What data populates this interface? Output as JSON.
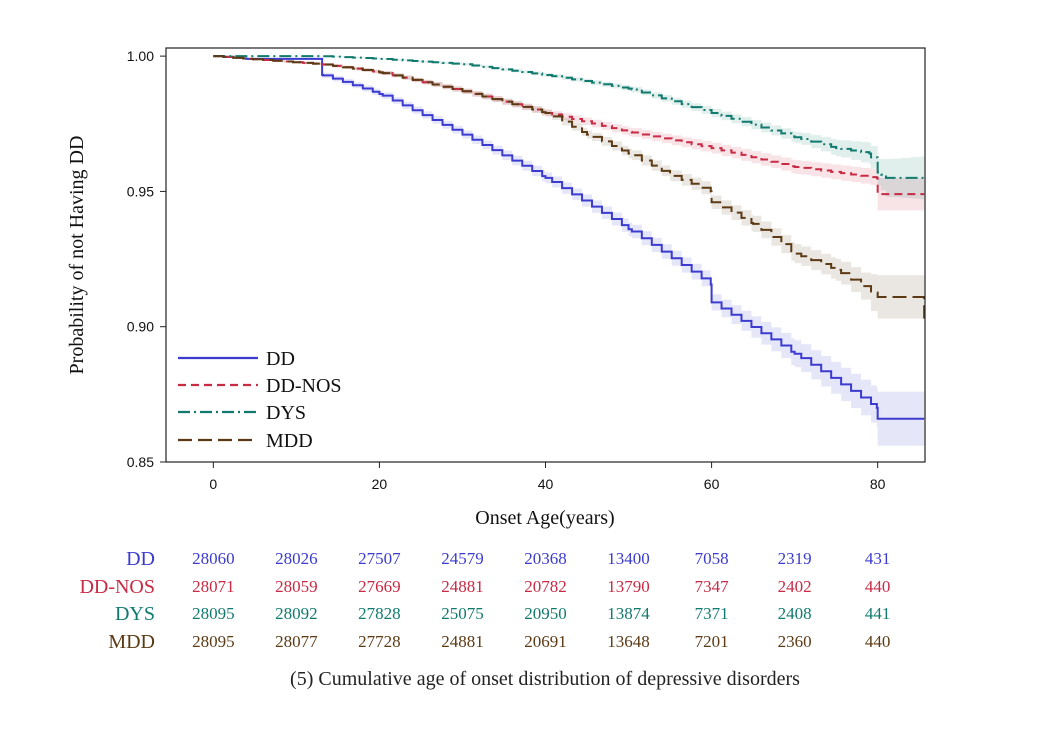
{
  "chart_data": {
    "type": "line",
    "subtype": "kaplan-meier step curves with confidence bands",
    "xlabel": "Onset Age(years)",
    "ylabel": "Probability of not Having DD",
    "xlim": [
      -5.7,
      85.7
    ],
    "ylim": [
      0.85,
      1.003
    ],
    "xticks": [
      0,
      20,
      40,
      60,
      80
    ],
    "xtick_labels": [
      "0",
      "20",
      "40",
      "60",
      "80"
    ],
    "yticks": [
      1.0,
      0.95,
      0.9,
      0.85
    ],
    "ytick_labels": [
      "1.00",
      "0.95",
      "0.90",
      "0.85"
    ],
    "legend_position": "bottom-left",
    "series": [
      {
        "name": "DD",
        "color": "#3b3bd0",
        "dash": "solid",
        "x": [
          0,
          4,
          13,
          13.1,
          20,
          30,
          40,
          50,
          59.9,
          60,
          70,
          79.9,
          80,
          85.6
        ],
        "y": [
          1.0,
          0.999,
          0.999,
          0.993,
          0.986,
          0.971,
          0.955,
          0.936,
          0.9156,
          0.909,
          0.89,
          0.87,
          0.866,
          0.866
        ],
        "ci_halfwidth": [
          0,
          0.0003,
          0.0004,
          0.001,
          0.0012,
          0.0015,
          0.002,
          0.0025,
          0.003,
          0.003,
          0.005,
          0.007,
          0.01,
          0.01
        ]
      },
      {
        "name": "DD-NOS",
        "color": "#c92a44",
        "dash": "8,5",
        "x": [
          0,
          4,
          13,
          20,
          30,
          40,
          50,
          60,
          70,
          79.9,
          80,
          85.6
        ],
        "y": [
          1.0,
          0.999,
          0.997,
          0.994,
          0.987,
          0.979,
          0.972,
          0.966,
          0.959,
          0.955,
          0.949,
          0.949
        ],
        "ci_halfwidth": [
          0,
          0.0003,
          0.0005,
          0.0007,
          0.001,
          0.0012,
          0.0016,
          0.002,
          0.0025,
          0.003,
          0.006,
          0.006
        ]
      },
      {
        "name": "DYS",
        "color": "#117a6e",
        "dash": "12,4,2,4",
        "x": [
          0,
          13,
          20,
          30,
          40,
          50,
          60,
          70,
          75,
          79,
          80,
          81,
          85.6
        ],
        "y": [
          1.0,
          1.0,
          0.999,
          0.997,
          0.993,
          0.988,
          0.979,
          0.97,
          0.966,
          0.964,
          0.957,
          0.955,
          0.955
        ],
        "ci_halfwidth": [
          0,
          0.0002,
          0.0003,
          0.0005,
          0.0007,
          0.001,
          0.0015,
          0.002,
          0.003,
          0.004,
          0.005,
          0.007,
          0.008
        ]
      },
      {
        "name": "MDD",
        "color": "#5c3a14",
        "dash": "14,6",
        "x": [
          0,
          4,
          13,
          20,
          30,
          40,
          45,
          50,
          55,
          59.9,
          60,
          65,
          70,
          75,
          78,
          80,
          85.5,
          85.6
        ],
        "y": [
          1.0,
          0.999,
          0.997,
          0.994,
          0.987,
          0.979,
          0.971,
          0.964,
          0.956,
          0.95,
          0.946,
          0.938,
          0.927,
          0.921,
          0.915,
          0.911,
          0.911,
          0.903
        ],
        "ci_halfwidth": [
          0,
          0.0003,
          0.0005,
          0.0007,
          0.001,
          0.0013,
          0.0015,
          0.0018,
          0.002,
          0.0025,
          0.0025,
          0.003,
          0.0035,
          0.004,
          0.005,
          0.008,
          0.008,
          0.02
        ]
      }
    ],
    "risk_table": {
      "ages": [
        0,
        10,
        20,
        30,
        40,
        50,
        60,
        70,
        80
      ],
      "rows": [
        {
          "name": "DD",
          "color": "#3b3bd0",
          "values": [
            "28060",
            "28026",
            "27507",
            "24579",
            "20368",
            "13400",
            "7058",
            "2319",
            "431"
          ]
        },
        {
          "name": "DD-NOS",
          "color": "#c92a44",
          "values": [
            "28071",
            "28059",
            "27669",
            "24881",
            "20782",
            "13790",
            "7347",
            "2402",
            "440"
          ]
        },
        {
          "name": "DYS",
          "color": "#117a6e",
          "values": [
            "28095",
            "28092",
            "27828",
            "25075",
            "20950",
            "13874",
            "7371",
            "2408",
            "441"
          ]
        },
        {
          "name": "MDD",
          "color": "#5c3a14",
          "values": [
            "28095",
            "28077",
            "27728",
            "24881",
            "20691",
            "13648",
            "7201",
            "2360",
            "440"
          ]
        }
      ]
    },
    "caption": "(5) Cumulative age of onset distribution of depressive disorders"
  }
}
